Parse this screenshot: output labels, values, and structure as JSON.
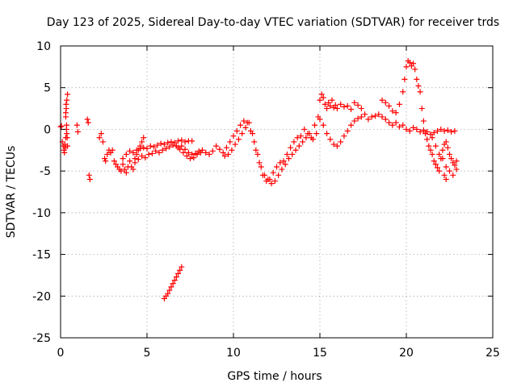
{
  "chart_data": {
    "type": "scatter",
    "title": "Day 123 of 2025, Sidereal Day-to-day VTEC variation (SDTVAR) for receiver trds",
    "xlabel": "GPS time / hours",
    "ylabel": "SDTVAR / TECUs",
    "xlim": [
      0,
      25
    ],
    "ylim": [
      -25,
      10
    ],
    "xticks": [
      0,
      5,
      10,
      15,
      20,
      25
    ],
    "yticks": [
      -25,
      -20,
      -15,
      -10,
      -5,
      0,
      5,
      10
    ],
    "grid": true,
    "legend": "none",
    "marker": "plus",
    "colors": {
      "series": "#ff0000",
      "axis": "#000000",
      "grid": "#a0a0a0"
    },
    "series": [
      {
        "name": "SDTVAR",
        "x": [
          0.0,
          0.05,
          0.1,
          0.15,
          0.2,
          0.25,
          0.3,
          0.33,
          0.36,
          0.4,
          0.3,
          0.32,
          0.34,
          0.36,
          0.38,
          0.4,
          0.22,
          0.28,
          0.3,
          0.35,
          0.95,
          1.0,
          1.55,
          1.6,
          1.65,
          1.7,
          2.25,
          2.35,
          2.45,
          2.55,
          2.6,
          2.7,
          2.8,
          2.9,
          3.0,
          3.1,
          3.2,
          3.3,
          3.4,
          3.5,
          3.6,
          3.7,
          3.8,
          3.9,
          4.0,
          4.1,
          4.2,
          4.3,
          4.4,
          4.5,
          4.6,
          4.7,
          4.8,
          3.6,
          3.8,
          4.0,
          4.2,
          4.4,
          4.6,
          4.8,
          5.0,
          5.2,
          5.4,
          5.6,
          5.8,
          6.0,
          6.2,
          6.4,
          6.6,
          6.8,
          7.0,
          7.2,
          7.4,
          7.6,
          4.3,
          4.5,
          4.7,
          4.9,
          5.1,
          5.3,
          5.5,
          5.7,
          5.9,
          6.1,
          6.3,
          6.5,
          6.7,
          6.9,
          7.1,
          7.3,
          7.5,
          7.7,
          7.9,
          8.1,
          6.8,
          7.0,
          7.2,
          7.4,
          7.6,
          7.8,
          8.0,
          8.2,
          8.4,
          8.6,
          8.8,
          9.0,
          9.2,
          9.4,
          9.6,
          9.8,
          10.0,
          10.2,
          10.4,
          10.6,
          10.8,
          11.0,
          11.2,
          11.4,
          11.6,
          11.8,
          12.0,
          12.2,
          12.4,
          12.6,
          12.8,
          13.0,
          13.2,
          13.4,
          13.6,
          13.8,
          14.0,
          14.2,
          14.4,
          14.6,
          14.8,
          15.0,
          9.5,
          9.7,
          9.9,
          10.1,
          10.3,
          10.5,
          10.7,
          10.9,
          11.1,
          11.3,
          11.5,
          11.7,
          11.9,
          12.1,
          12.3,
          12.5,
          12.7,
          12.9,
          13.1,
          13.3,
          13.5,
          13.7,
          13.9,
          14.1,
          14.3,
          14.5,
          14.7,
          14.9,
          15.0,
          15.1,
          15.2,
          15.3,
          15.4,
          15.5,
          15.6,
          15.7,
          15.8,
          15.9,
          16.0,
          16.2,
          16.4,
          16.6,
          16.8,
          17.0,
          17.2,
          17.4,
          15.2,
          15.4,
          15.6,
          15.8,
          16.0,
          16.2,
          16.4,
          16.6,
          16.8,
          17.0,
          17.2,
          17.4,
          17.6,
          17.8,
          18.0,
          18.2,
          18.4,
          18.6,
          18.8,
          19.0,
          19.2,
          19.4,
          19.6,
          19.8,
          20.0,
          20.2,
          20.4,
          20.6,
          20.8,
          21.0,
          21.2,
          21.4,
          21.6,
          21.8,
          22.0,
          22.2,
          22.4,
          22.6,
          22.8,
          18.6,
          18.8,
          19.0,
          19.2,
          19.4,
          19.6,
          19.8,
          19.9,
          20.0,
          20.1,
          20.2,
          20.3,
          20.4,
          20.5,
          20.6,
          20.7,
          20.8,
          20.9,
          21.0,
          21.1,
          21.2,
          21.3,
          21.4,
          21.5,
          21.6,
          21.7,
          21.8,
          21.9,
          22.0,
          22.1,
          22.2,
          22.3,
          22.4,
          22.5,
          22.6,
          22.7,
          22.8,
          22.9,
          21.5,
          21.7,
          21.9,
          22.1,
          22.3,
          22.5,
          22.7,
          22.9,
          22.2,
          22.3,
          6.0,
          6.1,
          6.2,
          6.3,
          6.4,
          6.5,
          6.6,
          6.7,
          6.8,
          6.9,
          7.0
        ],
        "y": [
          0.3,
          0.4,
          -1.5,
          -2.0,
          -2.5,
          -1.8,
          1.5,
          2.5,
          3.5,
          4.2,
          2.0,
          3.0,
          0.0,
          -0.5,
          -1.0,
          -2.0,
          -2.8,
          -2.2,
          -1.0,
          0.5,
          0.5,
          -0.3,
          1.2,
          0.8,
          -5.5,
          -6.0,
          -1.0,
          -0.5,
          -1.5,
          -3.5,
          -3.8,
          -3.0,
          -2.5,
          -2.8,
          -2.5,
          -3.8,
          -4.2,
          -4.5,
          -4.8,
          -5.0,
          -4.2,
          -4.8,
          -5.2,
          -4.5,
          -3.8,
          -4.5,
          -4.8,
          -3.5,
          -3.0,
          -2.5,
          -2.0,
          -1.5,
          -1.0,
          -3.5,
          -3.0,
          -2.6,
          -2.8,
          -2.5,
          -2.3,
          -2.2,
          -2.3,
          -2.0,
          -2.1,
          -1.9,
          -1.7,
          -1.8,
          -1.6,
          -1.5,
          -1.6,
          -1.4,
          -1.3,
          -1.5,
          -1.4,
          -1.4,
          -4.0,
          -3.6,
          -3.2,
          -3.4,
          -3.0,
          -2.9,
          -2.6,
          -2.8,
          -2.5,
          -2.3,
          -2.1,
          -1.9,
          -2.0,
          -2.4,
          -2.8,
          -3.2,
          -3.5,
          -3.4,
          -3.0,
          -2.8,
          -2.2,
          -2.0,
          -2.4,
          -2.8,
          -3.0,
          -2.9,
          -2.6,
          -2.5,
          -2.8,
          -3.0,
          -2.6,
          -2.0,
          -2.4,
          -2.8,
          -2.2,
          -1.5,
          -0.8,
          -0.2,
          0.5,
          1.0,
          0.8,
          -0.2,
          -1.5,
          -3.0,
          -4.5,
          -5.5,
          -6.0,
          -6.5,
          -6.2,
          -5.5,
          -4.8,
          -4.2,
          -3.5,
          -3.0,
          -2.5,
          -2.0,
          -1.5,
          -1.0,
          -0.5,
          -1.2,
          -0.5,
          1.2,
          -3.2,
          -3.0,
          -2.5,
          -1.8,
          -1.2,
          -0.5,
          0.2,
          0.8,
          -0.5,
          -2.5,
          -4.0,
          -5.5,
          -6.2,
          -6.0,
          -5.2,
          -4.5,
          -4.0,
          -3.8,
          -3.0,
          -2.2,
          -1.5,
          -1.0,
          -0.8,
          0.0,
          -0.5,
          -1.0,
          0.5,
          1.5,
          3.5,
          4.2,
          3.8,
          3.0,
          2.5,
          3.2,
          2.8,
          3.5,
          2.6,
          2.9,
          2.5,
          3.0,
          2.7,
          2.8,
          2.4,
          3.2,
          2.9,
          2.5,
          0.5,
          -0.5,
          -1.2,
          -1.8,
          -2.0,
          -1.5,
          -0.8,
          -0.2,
          0.5,
          1.0,
          1.3,
          1.5,
          1.8,
          1.2,
          1.5,
          1.6,
          1.8,
          1.5,
          1.2,
          0.8,
          0.5,
          0.8,
          0.3,
          0.5,
          0.0,
          -0.2,
          0.2,
          0.0,
          -0.3,
          -0.1,
          -0.3,
          -0.6,
          -0.4,
          -0.2,
          0.0,
          -0.2,
          -0.1,
          -0.3,
          -0.2,
          3.5,
          3.2,
          2.8,
          2.2,
          2.0,
          3.0,
          4.5,
          6.0,
          7.5,
          8.2,
          8.0,
          7.6,
          7.9,
          7.2,
          6.0,
          5.2,
          4.5,
          2.5,
          1.0,
          -0.5,
          -1.2,
          -2.0,
          -2.5,
          -3.0,
          -3.8,
          -4.2,
          -4.6,
          -5.0,
          -3.5,
          -2.5,
          -1.8,
          -1.5,
          -2.2,
          -3.0,
          -3.5,
          -4.0,
          -4.3,
          -3.8,
          -1.0,
          -2.0,
          -3.0,
          -3.5,
          -4.5,
          -5.0,
          -5.5,
          -4.8,
          -5.5,
          -6.0,
          -20.3,
          -20.0,
          -19.7,
          -19.3,
          -18.9,
          -18.5,
          -18.1,
          -17.7,
          -17.3,
          -16.9,
          -16.5
        ]
      }
    ]
  }
}
